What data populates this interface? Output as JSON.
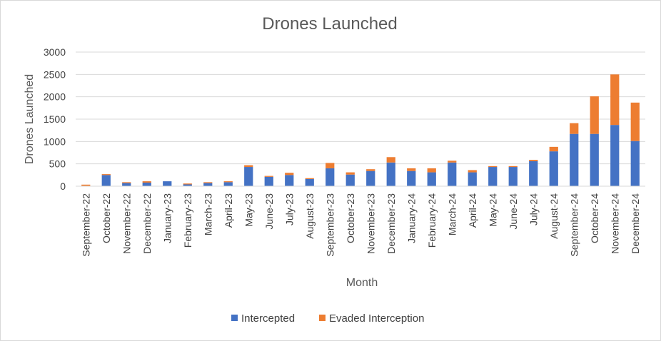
{
  "chart_data": {
    "type": "bar",
    "stacked": true,
    "title": "Drones Launched",
    "xlabel": "Month",
    "ylabel": "Drones Launched",
    "ylim": [
      0,
      3000
    ],
    "yticks": [
      0,
      500,
      1000,
      1500,
      2000,
      2500,
      3000
    ],
    "grid": true,
    "legend": "bottom",
    "categories": [
      "September-22",
      "October-22",
      "November-22",
      "December-22",
      "January-23",
      "February-23",
      "March-23",
      "April-23",
      "May-23",
      "June-23",
      "July-23",
      "August-23",
      "September-23",
      "October-23",
      "November-23",
      "December-23",
      "January-24",
      "February-24",
      "March-24",
      "April-24",
      "May-24",
      "June-24",
      "July-24",
      "August-24",
      "September-24",
      "October-24",
      "November-24",
      "December-24"
    ],
    "series": [
      {
        "name": "Intercepted",
        "color": "#4472c4",
        "values": [
          5,
          250,
          70,
          80,
          110,
          40,
          70,
          90,
          430,
          210,
          250,
          160,
          400,
          260,
          340,
          530,
          340,
          310,
          530,
          310,
          430,
          430,
          560,
          780,
          1170,
          1170,
          1370,
          1010
        ]
      },
      {
        "name": "Evaded Interception",
        "color": "#ed7d31",
        "values": [
          30,
          20,
          20,
          30,
          0,
          20,
          20,
          20,
          40,
          20,
          50,
          20,
          120,
          50,
          40,
          120,
          60,
          90,
          40,
          50,
          20,
          20,
          30,
          100,
          240,
          840,
          1130,
          860
        ]
      }
    ]
  }
}
